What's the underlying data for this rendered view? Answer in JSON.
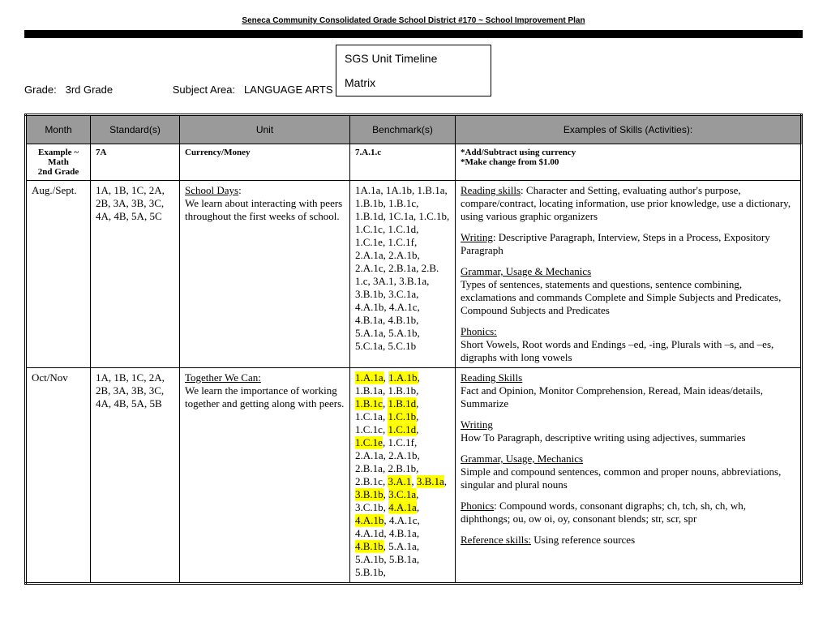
{
  "header": "Seneca Community Consolidated Grade School District #170 ~ School Improvement Plan",
  "title_line1": "SGS Unit Timeline",
  "title_line2": "Matrix",
  "meta": {
    "grade_label": "Grade:",
    "grade_value": "3rd Grade",
    "subject_label": "Subject Area:",
    "subject_value": "LANGUAGE ARTS"
  },
  "columns": {
    "month": "Month",
    "standard": "Standard(s)",
    "unit": "Unit",
    "benchmark": "Benchmark(s)",
    "skills": "Examples of Skills (Activities):"
  },
  "example": {
    "month": "Example ~ Math\n2nd Grade",
    "standard": "7A",
    "unit": "Currency/Money",
    "benchmark": "7.A.1.c",
    "skills": "*Add/Subtract using currency\n*Make change from $1.00"
  },
  "rows": [
    {
      "month": "Aug./Sept.",
      "standard": "1A, 1B, 1C, 2A, 2B, 3A, 3B, 3C, 4A, 4B, 5A, 5C",
      "unit_title": "School Days",
      "unit_body": "We learn about interacting with peers throughout the first weeks of school.",
      "benchmark": "1A.1a, 1A.1b, 1.B.1a, 1.B.1b, 1.B.1c, 1.B.1d, 1C.1a, 1.C.1b, 1.C.1c, 1.C.1d, 1.C.1e, 1.C.1f, 2.A.1a, 2.A.1b, 2.A.1c, 2.B.1a, 2.B. 1.c, 3A.1, 3.B.1a, 3.B.1b, 3.C.1a, 4.A.1b, 4.A.1c, 4.B.1a, 4.B.1b, 5.A.1a, 5.A.1b, 5.C.1a, 5.C.1b",
      "skills": {
        "reading_label": "Reading skills",
        "reading_body": ": Character and Setting, evaluating author's purpose, compare/contract, locating information, use prior knowledge, use a dictionary, using various graphic organizers",
        "writing_label": "Writing",
        "writing_body": ": Descriptive Paragraph, Interview, Steps in a Process, Expository Paragraph",
        "grammar_label": "Grammar, Usage & Mechanics",
        "grammar_body": "Types of sentences, statements and questions, sentence combining, exclamations and commands Complete and Simple Subjects and Predicates, Compound Subjects and Predicates",
        "phonics_label": "Phonics:",
        "phonics_body": "Short Vowels, Root words and Endings –ed, -ing, Plurals with –s, and –es, digraphs with long vowels"
      }
    },
    {
      "month": "Oct/Nov",
      "standard": "1A, 1B, 1C, 2A, 2B, 3A, 3B, 3C, 4A, 4B, 5A, 5B",
      "unit_title": "Together We Can:",
      "unit_body": "We learn the importance of working together and getting along with peers.",
      "bench_tokens": [
        {
          "t": "1.A.1a",
          "hl": true
        },
        {
          "t": ", "
        },
        {
          "t": "1.A.1b",
          "hl": true
        },
        {
          "t": ", 1.B.1a, 1.B.1b, "
        },
        {
          "t": "1.B.1c",
          "hl": true
        },
        {
          "t": ", "
        },
        {
          "t": "1.B.1d",
          "hl": true
        },
        {
          "t": ", 1.C.1a, "
        },
        {
          "t": "1.C.1b",
          "hl": true
        },
        {
          "t": ", 1.C.1c, "
        },
        {
          "t": "1.C.1d",
          "hl": true
        },
        {
          "t": ", "
        },
        {
          "t": "1.C.1e",
          "hl": true
        },
        {
          "t": ", 1.C.1f, 2.A.1a, 2.A.1b, 2.B.1a, 2.B.1b, 2.B.1c, "
        },
        {
          "t": "3.A.1",
          "hl": true
        },
        {
          "t": ", "
        },
        {
          "t": "3.B.1a",
          "hl": true
        },
        {
          "t": ", "
        },
        {
          "t": "3.B.1b",
          "hl": true
        },
        {
          "t": ", "
        },
        {
          "t": "3.C.1a",
          "hl": true
        },
        {
          "t": ", 3.C.1b, "
        },
        {
          "t": "4.A.1a",
          "hl": true
        },
        {
          "t": ", "
        },
        {
          "t": "4.A.1b",
          "hl": true
        },
        {
          "t": ", 4.A.1c, 4.A.1d, 4.B.1a, "
        },
        {
          "t": "4.B.1b",
          "hl": true
        },
        {
          "t": ", 5.A.1a, 5.A.1b, 5.B.1a, 5.B.1b,"
        }
      ],
      "skills": {
        "reading_label": "Reading Skills",
        "reading_body": "Fact and Opinion, Monitor Comprehension, Reread, Main ideas/details, Summarize",
        "writing_label": "Writing",
        "writing_body": "How To Paragraph, descriptive writing using adjectives, summaries",
        "grammar_label": "Grammar, Usage, Mechanics",
        "grammar_body": "Simple and compound sentences, common and proper nouns, abbreviations, singular and plural nouns",
        "phonics_label": "Phonics",
        "phonics_body": ": Compound words, consonant digraphs; ch, tch, sh, ch, wh, diphthongs; ou, ow oi, oy, consonant blends; str, scr, spr",
        "ref_label": "Reference skills:",
        "ref_body": "  Using reference sources"
      }
    }
  ]
}
